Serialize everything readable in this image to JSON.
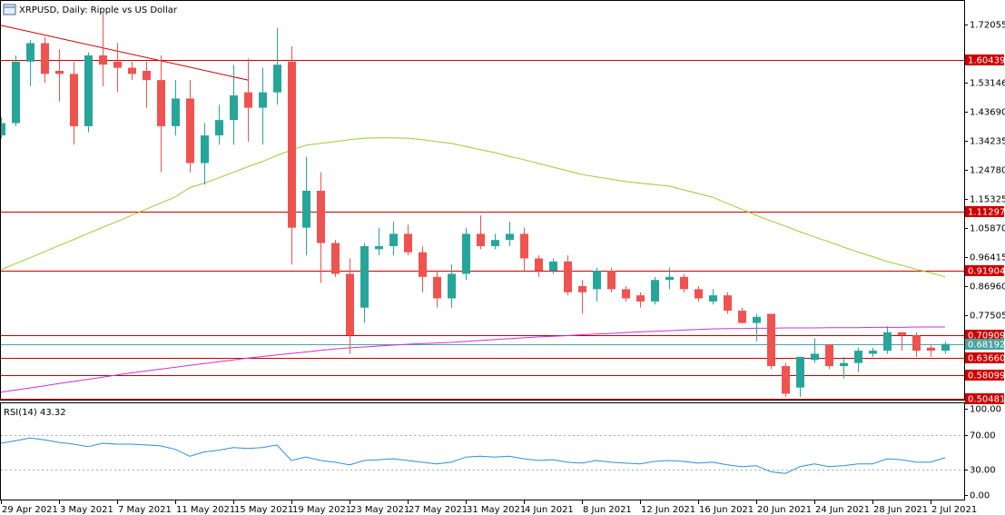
{
  "chart_data": [
    {
      "type": "candlestick",
      "title": "XRPUSD, Daily:  Ripple vs US Dollar",
      "categories": [
        "29 Apr 2021",
        null,
        null,
        null,
        "3 May 2021",
        null,
        null,
        null,
        "7 May 2021",
        null,
        null,
        null,
        "11 May 2021",
        null,
        null,
        null,
        "15 May 2021",
        null,
        null,
        null,
        "19 May 2021",
        null,
        null,
        null,
        "23 May 2021",
        null,
        null,
        null,
        "27 May 2021",
        null,
        null,
        null,
        "31 May 2021",
        null,
        null,
        null,
        "4 Jun 2021",
        null,
        null,
        null,
        "8 Jun 2021",
        null,
        null,
        null,
        "12 Jun 2021",
        null,
        null,
        null,
        "16 Jun 2021",
        null,
        null,
        null,
        "20 Jun 2021",
        null,
        null,
        null,
        "24 Jun 2021",
        null,
        null,
        null,
        "28 Jun 2021",
        null,
        null,
        null,
        "2 Jul 2021",
        null
      ],
      "open": [
        1.36,
        1.4,
        1.6,
        1.66,
        1.57,
        1.56,
        1.39,
        1.62,
        1.6,
        1.58,
        1.57,
        1.54,
        1.39,
        1.48,
        1.27,
        1.36,
        1.41,
        1.5,
        1.45,
        1.5,
        1.6,
        1.06,
        1.18,
        1.01,
        0.91,
        0.8,
        0.99,
        1.0,
        1.04,
        0.98,
        0.9,
        0.83,
        0.91,
        1.04,
        1.0,
        1.02,
        1.04,
        0.96,
        0.92,
        0.95,
        0.87,
        0.86,
        0.92,
        0.86,
        0.84,
        0.82,
        0.89,
        0.9,
        0.86,
        0.82,
        0.84,
        0.79,
        0.75,
        0.78,
        0.61,
        0.54,
        0.63,
        0.68,
        0.61,
        0.62,
        0.65,
        0.66,
        0.72,
        0.71,
        0.67,
        0.66
      ],
      "high": [
        1.42,
        1.62,
        1.67,
        1.68,
        1.64,
        1.6,
        1.63,
        1.76,
        1.66,
        1.6,
        1.6,
        1.62,
        1.54,
        1.54,
        1.4,
        1.46,
        1.59,
        1.61,
        1.58,
        1.71,
        1.65,
        1.29,
        1.24,
        1.02,
        0.96,
        1.01,
        1.06,
        1.08,
        1.07,
        1.0,
        0.92,
        0.94,
        1.06,
        1.1,
        1.04,
        1.08,
        1.06,
        0.97,
        0.96,
        0.97,
        0.89,
        0.93,
        0.93,
        0.87,
        0.85,
        0.9,
        0.93,
        0.91,
        0.87,
        0.86,
        0.85,
        0.8,
        0.78,
        0.78,
        0.62,
        0.64,
        0.7,
        0.68,
        0.64,
        0.67,
        0.67,
        0.74,
        0.72,
        0.72,
        0.68,
        0.69
      ],
      "low": [
        1.35,
        1.39,
        1.52,
        1.53,
        1.47,
        1.33,
        1.37,
        1.52,
        1.5,
        1.54,
        1.45,
        1.24,
        1.36,
        1.24,
        1.2,
        1.33,
        1.33,
        1.34,
        1.33,
        1.46,
        0.94,
        0.97,
        0.88,
        0.9,
        0.65,
        0.75,
        0.97,
        0.97,
        0.97,
        0.85,
        0.8,
        0.8,
        0.89,
        0.99,
        0.99,
        1.0,
        0.92,
        0.9,
        0.91,
        0.84,
        0.78,
        0.82,
        0.85,
        0.82,
        0.8,
        0.81,
        0.86,
        0.85,
        0.82,
        0.81,
        0.78,
        0.75,
        0.69,
        0.6,
        0.51,
        0.51,
        0.62,
        0.6,
        0.57,
        0.59,
        0.64,
        0.65,
        0.66,
        0.64,
        0.64,
        0.65
      ],
      "close": [
        1.4,
        1.6,
        1.66,
        1.56,
        1.56,
        1.39,
        1.62,
        1.59,
        1.58,
        1.56,
        1.54,
        1.39,
        1.48,
        1.27,
        1.36,
        1.41,
        1.49,
        1.45,
        1.5,
        1.59,
        1.06,
        1.18,
        1.01,
        0.91,
        0.71,
        1.0,
        1.0,
        1.04,
        0.98,
        0.9,
        0.83,
        0.91,
        1.04,
        1.0,
        1.02,
        1.04,
        0.96,
        0.92,
        0.95,
        0.85,
        0.85,
        0.92,
        0.86,
        0.83,
        0.82,
        0.89,
        0.9,
        0.86,
        0.83,
        0.84,
        0.79,
        0.75,
        0.77,
        0.61,
        0.52,
        0.64,
        0.65,
        0.61,
        0.62,
        0.66,
        0.66,
        0.72,
        0.71,
        0.66,
        0.66,
        0.68192
      ],
      "up_color": "#26a69a",
      "down_color": "#ef5350",
      "series": [
        {
          "color": "#9acd32",
          "values": [
            0.923,
            0.943,
            0.962,
            0.982,
            1.002,
            1.021,
            1.041,
            1.061,
            1.08,
            1.1,
            1.12,
            1.14,
            1.16,
            1.19,
            1.205,
            1.222,
            1.24,
            1.258,
            1.275,
            1.295,
            1.312,
            1.328,
            1.334,
            1.34,
            1.346,
            1.351,
            1.352,
            1.352,
            1.351,
            1.346,
            1.34,
            1.334,
            1.324,
            1.314,
            1.304,
            1.292,
            1.281,
            1.269,
            1.257,
            1.245,
            1.233,
            1.225,
            1.218,
            1.21,
            1.205,
            1.2,
            1.195,
            1.183,
            1.171,
            1.159,
            1.139,
            1.12,
            1.1,
            1.082,
            1.065,
            1.047,
            1.03,
            1.014,
            0.997,
            0.981,
            0.966,
            0.95,
            0.938,
            0.925,
            0.913,
            0.9
          ]
        },
        {
          "color": "#cc33cc",
          "values": [
            0.525,
            0.532,
            0.539,
            0.546,
            0.553,
            0.56,
            0.567,
            0.574,
            0.581,
            0.588,
            0.594,
            0.6,
            0.606,
            0.612,
            0.618,
            0.624,
            0.63,
            0.636,
            0.641,
            0.646,
            0.651,
            0.656,
            0.661,
            0.666,
            0.669,
            0.672,
            0.675,
            0.678,
            0.681,
            0.683,
            0.685,
            0.687,
            0.69,
            0.693,
            0.696,
            0.699,
            0.702,
            0.705,
            0.707,
            0.709,
            0.712,
            0.714,
            0.716,
            0.719,
            0.721,
            0.723,
            0.725,
            0.727,
            0.729,
            0.731,
            0.732,
            0.732,
            0.733,
            0.733,
            0.734,
            0.734,
            0.734,
            0.735,
            0.735,
            0.735,
            0.736,
            0.736,
            0.736,
            0.737,
            0.737,
            0.737
          ]
        }
      ],
      "trendline": {
        "color": "#cc0000",
        "x": [
          0,
          17
        ],
        "values": [
          1.718,
          1.54
        ]
      },
      "levels": [
        1.60439,
        1.11297,
        0.91904,
        0.70909,
        {
          "value": 0.6366,
          "label": "0.63660"
        },
        0.58099,
        0.50481
      ],
      "level_color": "#cc0000",
      "price": 0.68192,
      "price_color": "#4aa3a0",
      "ylim": [
        0.5008,
        1.8003
      ],
      "yticks": [
        1.72055,
        1.53146,
        {
          "value": 1.4369,
          "label": "1.43690"
        },
        1.34235,
        {
          "value": 1.2478,
          "label": "1.24780"
        },
        1.15325,
        {
          "value": 1.0587,
          "label": "1.05870"
        },
        0.96415,
        {
          "value": 0.8696,
          "label": "0.86960"
        },
        0.77505
      ]
    },
    {
      "type": "line",
      "title": "RSI(14) 43.32",
      "series": [
        {
          "color": "#2f8fd8",
          "values": [
            60,
            63,
            66,
            64,
            61,
            59,
            56,
            60,
            59,
            59,
            58,
            57,
            53,
            45,
            50,
            52,
            55,
            54,
            55,
            58,
            40,
            44,
            40,
            38,
            35,
            40,
            41,
            42,
            40,
            38,
            36,
            38,
            44,
            45,
            44,
            45,
            42,
            40,
            41,
            38,
            37,
            40,
            38,
            37,
            36,
            39,
            40,
            39,
            37,
            38,
            35,
            33,
            34,
            27,
            25,
            33,
            36,
            33,
            34,
            36,
            36,
            42,
            41,
            38,
            38,
            43.32
          ]
        }
      ],
      "ylim": [
        -6.3,
        107.4
      ],
      "yticks": [
        {
          "value": 100,
          "label": "100.00"
        },
        {
          "value": 70,
          "label": "70.00"
        },
        {
          "value": 30,
          "label": "30.00"
        },
        {
          "value": 0,
          "label": "0.00"
        }
      ],
      "dotted_levels": [
        70,
        30
      ]
    }
  ]
}
